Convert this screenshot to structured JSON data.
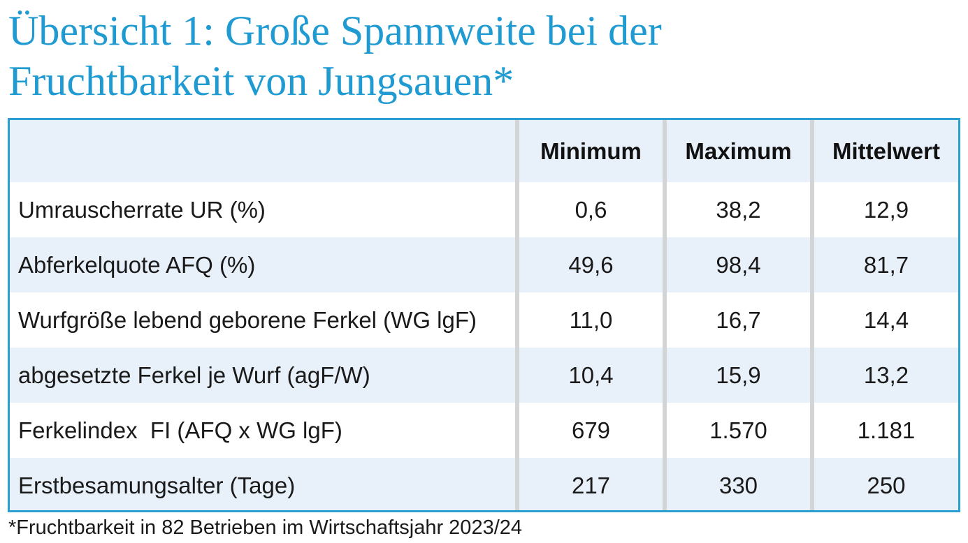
{
  "title": {
    "line1": "Übersicht 1: Große Spannweite bei der",
    "line2": "Fruchtbarkeit von Jungsauen*"
  },
  "table": {
    "headers": [
      "",
      "Minimum",
      "Maximum",
      "Mittelwert"
    ],
    "rows": [
      {
        "label": "Umrauscherrate UR (%)",
        "min": "0,6",
        "max": "38,2",
        "mean": "12,9"
      },
      {
        "label": "Abferkelquote AFQ (%)",
        "min": "49,6",
        "max": "98,4",
        "mean": "81,7"
      },
      {
        "label": "Wurfgröße lebend geborene Ferkel (WG lgF)",
        "min": "11,0",
        "max": "16,7",
        "mean": "14,4"
      },
      {
        "label": "abgesetzte Ferkel je Wurf (agF/W)",
        "min": "10,4",
        "max": "15,9",
        "mean": "13,2"
      },
      {
        "label": "Ferkelindex  FI (AFQ x WG lgF)",
        "min": "679",
        "max": "1.570",
        "mean": "1.181"
      },
      {
        "label": "Erstbesamungsalter (Tage)",
        "min": "217",
        "max": "330",
        "mean": "250"
      }
    ]
  },
  "footnote": "*Fruchtbarkeit in 82 Betrieben im Wirtschaftsjahr 2023/24",
  "colors": {
    "title": "#1f9bd1",
    "border": "#2a9fd0",
    "row_shade": "#e8f0f9",
    "separator": "#d2d4d6"
  }
}
